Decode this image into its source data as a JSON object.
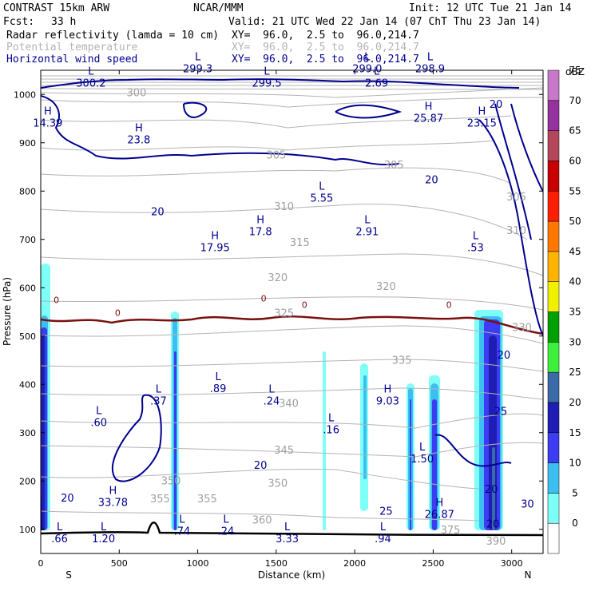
{
  "header": {
    "model": "CONTRAST 15km ARW",
    "center": "NCAR/MMM",
    "init": "Init: 12 UTC Tue 21 Jan 14",
    "fcst_label": "Fcst:",
    "fcst_value": "33 h",
    "valid": "Valid: 21 UTC Wed 22 Jan 14 (07 ChT Thu 23 Jan 14)"
  },
  "legend": {
    "fields": [
      {
        "name": "Radar reflectivity (lamda = 10 cm)",
        "xy": "XY=  96.0,  2.5 to  96.0,214.7",
        "color": "#000000"
      },
      {
        "name": "Potential temperature",
        "xy": "XY=  96.0,  2.5 to  96.0,214.7",
        "color": "#b4b4b4"
      },
      {
        "name": "Horizontal wind speed",
        "xy": "XY=  96.0,  2.5 to  96.0,214.7",
        "color": "#000090"
      }
    ]
  },
  "chart_data": {
    "type": "cross-section contour",
    "xlabel": "Distance (km)",
    "ylabel": "Pressure (hPa)",
    "xlim": [
      0,
      3200
    ],
    "ylim": [
      1050,
      50
    ],
    "x_ticks": [
      0,
      500,
      1000,
      1500,
      2000,
      2500,
      3000
    ],
    "y_ticks": [
      100,
      200,
      300,
      400,
      500,
      600,
      700,
      800,
      900,
      1000
    ],
    "end_labels": {
      "left": "S",
      "right": "N"
    },
    "colorbar": {
      "unit": "dBZ",
      "levels": [
        0,
        5,
        10,
        15,
        20,
        25,
        30,
        35,
        40,
        45,
        50,
        55,
        60,
        65,
        70,
        75
      ],
      "colors": [
        "#ffffff",
        "#7efff8",
        "#3cbef0",
        "#3c3cf0",
        "#1e1eb4",
        "#3a6aa8",
        "#3cf03c",
        "#00a000",
        "#f0f000",
        "#ffb400",
        "#ff7800",
        "#ff1e00",
        "#c80000",
        "#b4465a",
        "#9632a0",
        "#c878c8"
      ]
    },
    "wind_contour_labels": [
      {
        "text": "20",
        "x": 1400,
        "p": 232
      },
      {
        "text": "20",
        "x": 170,
        "p": 164
      },
      {
        "text": "25",
        "x": 2200,
        "p": 137
      },
      {
        "text": "20",
        "x": 2880,
        "p": 110
      },
      {
        "text": "30",
        "x": 3100,
        "p": 152
      },
      {
        "text": "20",
        "x": 2870,
        "p": 182
      },
      {
        "text": "25",
        "x": 2930,
        "p": 343
      },
      {
        "text": "20",
        "x": 2950,
        "p": 460
      },
      {
        "text": "20",
        "x": 745,
        "p": 757
      },
      {
        "text": "20",
        "x": 2490,
        "p": 823
      },
      {
        "text": "20",
        "x": 2900,
        "p": 979
      }
    ],
    "theta_labels": [
      {
        "text": "390",
        "x": 2900,
        "p": 75
      },
      {
        "text": "375",
        "x": 2610,
        "p": 98
      },
      {
        "text": "360",
        "x": 1410,
        "p": 119
      },
      {
        "text": "355",
        "x": 760,
        "p": 162
      },
      {
        "text": "355",
        "x": 1060,
        "p": 162
      },
      {
        "text": "350",
        "x": 830,
        "p": 200
      },
      {
        "text": "350",
        "x": 1510,
        "p": 195
      },
      {
        "text": "345",
        "x": 1550,
        "p": 263
      },
      {
        "text": "340",
        "x": 1580,
        "p": 360
      },
      {
        "text": "335",
        "x": 2300,
        "p": 449
      },
      {
        "text": "330",
        "x": 3065,
        "p": 517
      },
      {
        "text": "325",
        "x": 1550,
        "p": 547
      },
      {
        "text": "320",
        "x": 1510,
        "p": 620
      },
      {
        "text": "320",
        "x": 2200,
        "p": 602
      },
      {
        "text": "315",
        "x": 1650,
        "p": 693
      },
      {
        "text": "310",
        "x": 1550,
        "p": 767
      },
      {
        "text": "310",
        "x": 3030,
        "p": 718
      },
      {
        "text": "305",
        "x": 1500,
        "p": 874
      },
      {
        "text": "305",
        "x": 2250,
        "p": 853
      },
      {
        "text": "305",
        "x": 3030,
        "p": 787
      },
      {
        "text": "300",
        "x": 610,
        "p": 1003
      }
    ],
    "freezing_labels": [
      {
        "text": "0",
        "x": 100,
        "p": 575
      },
      {
        "text": "0",
        "x": 490,
        "p": 548
      },
      {
        "text": "0",
        "x": 1420,
        "p": 578
      },
      {
        "text": "0",
        "x": 1680,
        "p": 565
      },
      {
        "text": "0",
        "x": 2600,
        "p": 565
      }
    ],
    "extrema": [
      {
        "kind": "L",
        "value": ".66",
        "x": 120,
        "p": 95
      },
      {
        "kind": "L",
        "value": "1.20",
        "x": 400,
        "p": 95
      },
      {
        "kind": "L",
        "value": ".74",
        "x": 900,
        "p": 110
      },
      {
        "kind": "L",
        "value": ".24",
        "x": 1180,
        "p": 110
      },
      {
        "kind": "L",
        "value": "3.33",
        "x": 1570,
        "p": 95
      },
      {
        "kind": "L",
        "value": ".94",
        "x": 2180,
        "p": 95
      },
      {
        "kind": "H",
        "value": "33.78",
        "x": 460,
        "p": 170
      },
      {
        "kind": "H",
        "value": "26.87",
        "x": 2540,
        "p": 145
      },
      {
        "kind": "L",
        "value": "1.50",
        "x": 2430,
        "p": 260
      },
      {
        "kind": "L",
        "value": ".16",
        "x": 1850,
        "p": 320
      },
      {
        "kind": "L",
        "value": ".60",
        "x": 370,
        "p": 335
      },
      {
        "kind": "L",
        "value": ".37",
        "x": 750,
        "p": 380
      },
      {
        "kind": "L",
        "value": ".24",
        "x": 1470,
        "p": 380
      },
      {
        "kind": "H",
        "value": "9.03",
        "x": 2210,
        "p": 380
      },
      {
        "kind": "L",
        "value": ".89",
        "x": 1130,
        "p": 405
      },
      {
        "kind": "L",
        "value": ".53",
        "x": 2770,
        "p": 697
      },
      {
        "kind": "H",
        "value": "17.95",
        "x": 1110,
        "p": 697
      },
      {
        "kind": "L",
        "value": "2.91",
        "x": 2080,
        "p": 730
      },
      {
        "kind": "H",
        "value": "17.8",
        "x": 1400,
        "p": 730
      },
      {
        "kind": "L",
        "value": "5.55",
        "x": 1790,
        "p": 800
      },
      {
        "kind": "H",
        "value": "23.8",
        "x": 625,
        "p": 920
      },
      {
        "kind": "H",
        "value": "14.39",
        "x": 45,
        "p": 955
      },
      {
        "kind": "H",
        "value": "25.87",
        "x": 2470,
        "p": 965
      },
      {
        "kind": "H",
        "value": "23.15",
        "x": 2810,
        "p": 955
      },
      {
        "kind": "L",
        "value": "300.2",
        "x": 320,
        "p": 1038
      },
      {
        "kind": "L",
        "value": "299.5",
        "x": 1440,
        "p": 1038
      },
      {
        "kind": "L",
        "value": "2.69",
        "x": 2140,
        "p": 1038
      },
      {
        "kind": "L",
        "value": "299.3",
        "x": 1000,
        "p": 1067
      },
      {
        "kind": "L",
        "value": "299.0",
        "x": 2080,
        "p": 1067
      },
      {
        "kind": "L",
        "value": "298.9",
        "x": 2480,
        "p": 1067
      }
    ]
  }
}
